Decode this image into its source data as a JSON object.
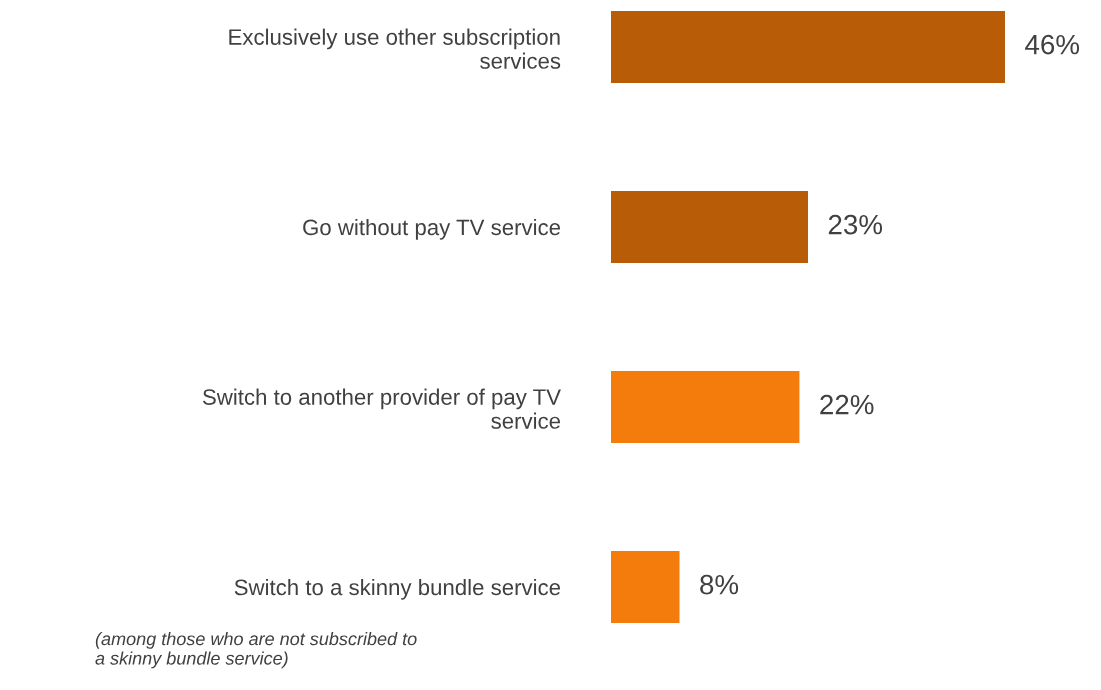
{
  "chart_data": {
    "type": "bar",
    "orientation": "horizontal",
    "categories": [
      "Exclusively use other subscription\nservices",
      "Go without pay TV service",
      "Switch to another provider of pay TV\nservice",
      "Switch to a skinny bundle service"
    ],
    "values": [
      46,
      23,
      22,
      8
    ],
    "colors": [
      "#b85c08",
      "#b85c08",
      "#f47c0c",
      "#f47c0c"
    ],
    "value_labels": [
      "46%",
      "23%",
      "22%",
      "8%"
    ],
    "annotations": [
      "(among those who are not subscribed to\na skinny bundle service)"
    ],
    "grid": false,
    "legend": false,
    "tick_labels": "y"
  }
}
